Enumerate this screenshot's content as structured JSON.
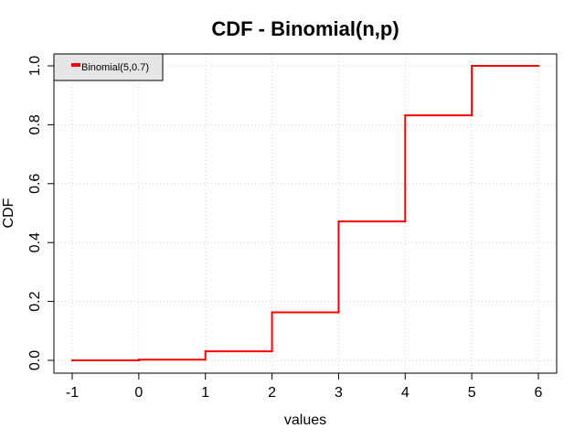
{
  "chart_data": {
    "type": "line",
    "step": true,
    "title": "CDF - Binomial(n,p)",
    "xlabel": "values",
    "ylabel": "CDF",
    "xlim": [
      -1,
      6
    ],
    "ylim": [
      0,
      1
    ],
    "xticks": [
      -1,
      0,
      1,
      2,
      3,
      4,
      5,
      6
    ],
    "yticks": [
      "0.0",
      "0.2",
      "0.4",
      "0.6",
      "0.8",
      "1.0"
    ],
    "grid": true,
    "legend_position": "top-left",
    "series": [
      {
        "name": "Binomial(5,0.7)",
        "color": "#ff0000",
        "x": [
          -1,
          0,
          1,
          2,
          3,
          4,
          5,
          6
        ],
        "y": [
          0,
          0.00243,
          0.03078,
          0.16308,
          0.47178,
          0.83193,
          1.0,
          1.0
        ]
      }
    ]
  }
}
